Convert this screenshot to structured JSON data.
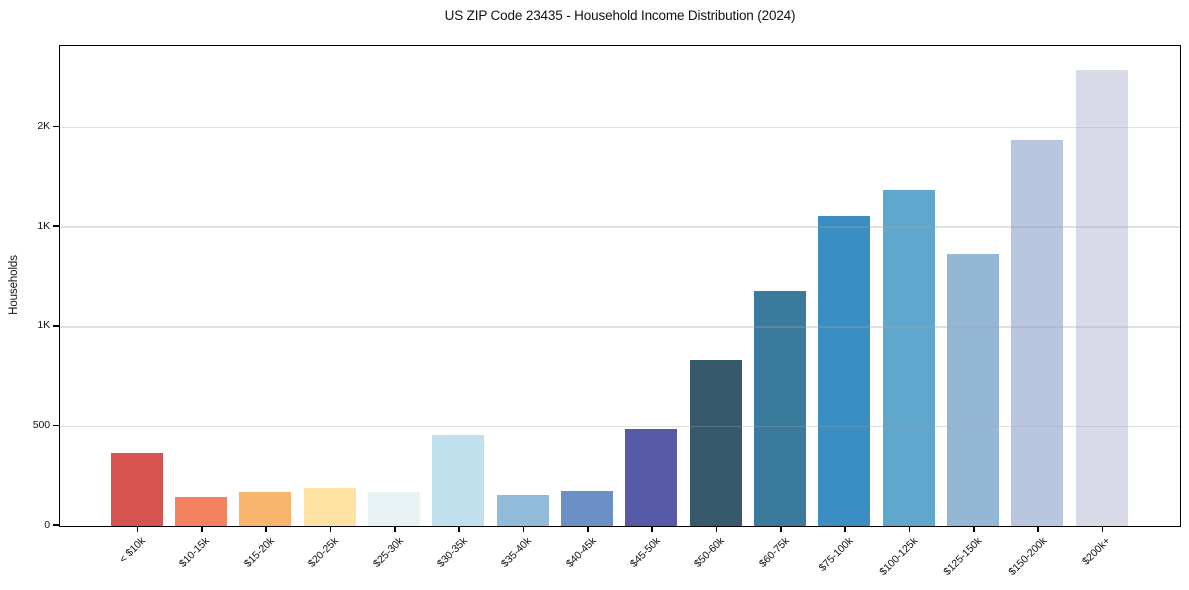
{
  "chart": {
    "title": "US ZIP Code 23435 - Household Income Distribution (2024)",
    "ylabel": "Households"
  },
  "chart_data": {
    "type": "bar",
    "title": "US ZIP Code 23435 - Household Income Distribution (2024)",
    "xlabel": "",
    "ylabel": "Households",
    "categories": [
      "< $10k",
      "$10-15k",
      "$15-20k",
      "$20-25k",
      "$25-30k",
      "$30-35k",
      "$35-40k",
      "$40-45k",
      "$45-50k",
      "$50-60k",
      "$60-75k",
      "$75-100k",
      "$100-125k",
      "$125-150k",
      "$150-200k",
      "$200k+"
    ],
    "values": [
      367,
      146,
      173,
      191,
      170,
      459,
      156,
      174,
      486,
      833,
      1181,
      1555,
      1684,
      1366,
      1936,
      2287
    ],
    "bar_colors": [
      "#d6544f",
      "#f3825e",
      "#f9b46d",
      "#fde2a2",
      "#e9f2f4",
      "#bfe0ec",
      "#90bcda",
      "#6b90c5",
      "#575aa8",
      "#36596b",
      "#3a7a9d",
      "#3a8ec4",
      "#60a7cd",
      "#94b7d5",
      "#b8c7df",
      "#d8dae8"
    ],
    "ylim": [
      0,
      2400
    ],
    "xlim": [
      -1.19,
      16.19
    ],
    "yticks": [
      {
        "value": 0,
        "label": "0"
      },
      {
        "value": 500,
        "label": "500"
      },
      {
        "value": 1000,
        "label": "1K"
      },
      {
        "value": 1500,
        "label": "1K"
      },
      {
        "value": 2000,
        "label": "2K"
      }
    ],
    "grid": "horizontal, light gray, drawn over bars",
    "legend_position": "none",
    "bar_width_fraction": 0.8
  },
  "colors": {
    "axis_spine": "#000000",
    "background": "#ffffff",
    "text": "#111111"
  }
}
